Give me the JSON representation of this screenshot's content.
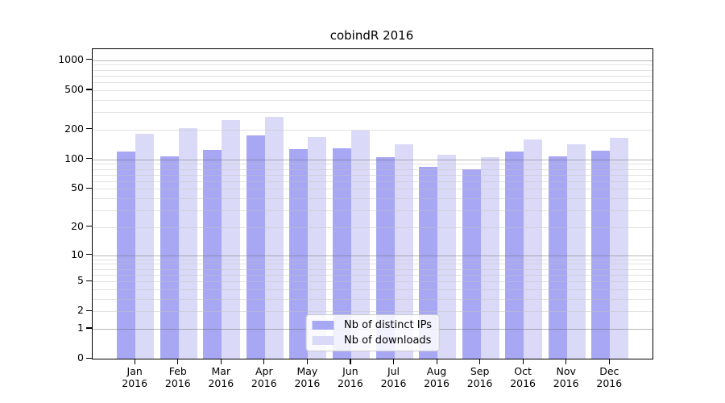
{
  "chart_data": {
    "type": "bar",
    "title": "cobindR 2016",
    "x_year": "2016",
    "categories": [
      "Jan",
      "Feb",
      "Mar",
      "Apr",
      "May",
      "Jun",
      "Jul",
      "Aug",
      "Sep",
      "Oct",
      "Nov",
      "Dec"
    ],
    "series": [
      {
        "name": "Nb of distinct IPs",
        "color": "#a7a7f4",
        "values": [
          120,
          107,
          125,
          175,
          127,
          129,
          105,
          84,
          79,
          119,
          108,
          122
        ]
      },
      {
        "name": "Nb of downloads",
        "color": "#dadaf8",
        "values": [
          182,
          207,
          249,
          270,
          168,
          196,
          143,
          112,
          105,
          159,
          143,
          165
        ]
      }
    ],
    "yscale": "log1p",
    "ylim": [
      0,
      1293
    ],
    "yticks": [
      0,
      1,
      2,
      5,
      10,
      20,
      50,
      100,
      200,
      500,
      1000
    ],
    "grid": {
      "major_values": [
        1,
        10,
        100,
        1000
      ],
      "minor_values": [
        2,
        3,
        4,
        5,
        6,
        7,
        8,
        9,
        20,
        30,
        40,
        50,
        60,
        70,
        80,
        90,
        200,
        300,
        400,
        500,
        600,
        700,
        800,
        900
      ],
      "major_color": "rgba(110,110,110,0.5)",
      "minor_color": "rgba(195,195,195,0.48)",
      "drawn_over_bars": true
    },
    "legend": {
      "position": "inside-bottom-center",
      "entries": [
        "Nb of distinct IPs",
        "Nb of downloads"
      ]
    }
  }
}
